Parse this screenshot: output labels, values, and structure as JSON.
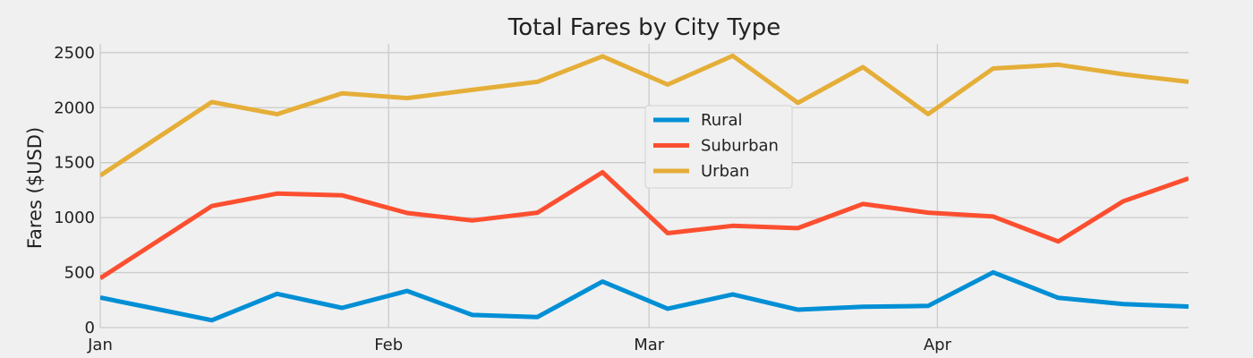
{
  "chart_data": {
    "type": "line",
    "title": "Total Fares by City Type",
    "xlabel": "",
    "ylabel": "Fares ($USD)",
    "x": [
      "2019-01-06",
      "2019-01-13",
      "2019-01-20",
      "2019-01-27",
      "2019-02-03",
      "2019-02-10",
      "2019-02-17",
      "2019-02-24",
      "2019-03-03",
      "2019-03-10",
      "2019-03-17",
      "2019-03-24",
      "2019-03-31",
      "2019-04-07",
      "2019-04-14",
      "2019-04-21",
      "2019-04-28"
    ],
    "xlim": [
      "2019-01-01",
      "2019-04-28"
    ],
    "xticks": [
      {
        "date": "2019-01-01",
        "label": "Jan"
      },
      {
        "date": "2019-02-01",
        "label": "Feb"
      },
      {
        "date": "2019-03-01",
        "label": "Mar"
      },
      {
        "date": "2019-04-01",
        "label": "Apr"
      }
    ],
    "ylim": [
      0,
      2580
    ],
    "yticks": [
      0,
      500,
      1000,
      1500,
      2000,
      2500
    ],
    "grid": true,
    "legend_position": "upper-center",
    "series": [
      {
        "name": "Rural",
        "color": "#008fd5",
        "values": [
          187,
          67,
          307,
          179,
          333,
          115,
          96,
          418,
          172,
          302,
          163,
          189,
          197,
          502,
          270,
          213,
          191
        ]
      },
      {
        "name": "Suburban",
        "color": "#fc4f30",
        "values": [
          722,
          1105,
          1218,
          1203,
          1042,
          974,
          1045,
          1412,
          859,
          925,
          904,
          1124,
          1045,
          1010,
          783,
          1149,
          1357
        ]
      },
      {
        "name": "Urban",
        "color": "#e5ae38",
        "values": [
          1661,
          2051,
          1940,
          2130,
          2087,
          2162,
          2235,
          2467,
          2210,
          2471,
          2044,
          2368,
          1941,
          2356,
          2390,
          2303,
          2235
        ]
      }
    ]
  }
}
